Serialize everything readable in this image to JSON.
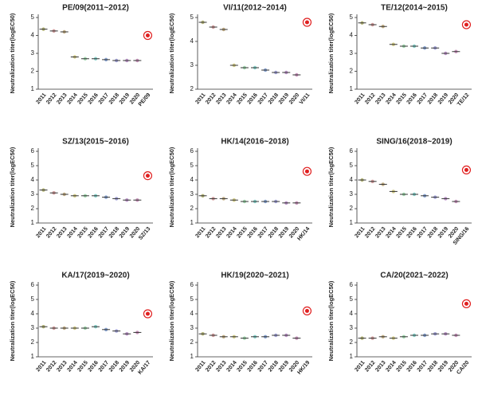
{
  "chart_data": [
    {
      "type": "dot",
      "title": "PE/09(2011~2012)",
      "y_label": "Neutralization titer(logEC50)",
      "categories": [
        "2011",
        "2012",
        "2013",
        "2014",
        "2015",
        "2016",
        "2017",
        "2018",
        "2019",
        "2020",
        "PE/09"
      ],
      "values": [
        4.35,
        4.25,
        4.2,
        2.8,
        2.7,
        2.7,
        2.65,
        2.6,
        2.6,
        2.6,
        4.0
      ],
      "colors": [
        "#a8a860",
        "#c98a8a",
        "#b8a070",
        "#c8c070",
        "#8fd0a0",
        "#70c8c0",
        "#7090c8",
        "#9090d0",
        "#b080c0",
        "#c080b0",
        "#e02020"
      ],
      "ylim": [
        1,
        5
      ],
      "yticks": [
        1,
        2,
        3,
        4,
        5
      ]
    },
    {
      "type": "dot",
      "title": "VI/11(2012~2014)",
      "y_label": "Neutralization titer(logEC50)",
      "categories": [
        "2011",
        "2012",
        "2013",
        "2014",
        "2015",
        "2016",
        "2017",
        "2018",
        "2019",
        "2020",
        "VI/11"
      ],
      "values": [
        4.8,
        4.6,
        4.5,
        3.0,
        2.9,
        2.9,
        2.8,
        2.7,
        2.7,
        2.6,
        4.8
      ],
      "colors": [
        "#a8a860",
        "#c98a8a",
        "#b8a070",
        "#c8c070",
        "#8fd0a0",
        "#70c8c0",
        "#7090c8",
        "#9090d0",
        "#b080c0",
        "#c080b0",
        "#e02020"
      ],
      "ylim": [
        2,
        5
      ],
      "yticks": [
        2,
        3,
        4,
        5
      ]
    },
    {
      "type": "dot",
      "title": "TE/12(2014~2015)",
      "y_label": "Neutralization titer(logEC50)",
      "categories": [
        "2011",
        "2012",
        "2013",
        "2014",
        "2015",
        "2016",
        "2017",
        "2018",
        "2019",
        "2020",
        "TE/12"
      ],
      "values": [
        4.7,
        4.6,
        4.5,
        3.5,
        3.4,
        3.4,
        3.3,
        3.3,
        3.0,
        3.1,
        4.6
      ],
      "colors": [
        "#a8a860",
        "#c98a8a",
        "#b8a070",
        "#c8c070",
        "#8fd0a0",
        "#70c8c0",
        "#7090c8",
        "#9090d0",
        "#b080c0",
        "#c080b0",
        "#e02020"
      ],
      "ylim": [
        1,
        5
      ],
      "yticks": [
        1,
        2,
        3,
        4,
        5
      ]
    },
    {
      "type": "dot",
      "title": "SZ/13(2015~2016)",
      "y_label": "Neutralization titer(logEC50)",
      "categories": [
        "2011",
        "2012",
        "2013",
        "2014",
        "2015",
        "2016",
        "2017",
        "2018",
        "2019",
        "2020",
        "SZ/13"
      ],
      "values": [
        3.3,
        3.1,
        3.0,
        2.9,
        2.9,
        2.9,
        2.8,
        2.7,
        2.6,
        2.6,
        4.3
      ],
      "colors": [
        "#a8a860",
        "#c98a8a",
        "#b8a070",
        "#c8c070",
        "#8fd0a0",
        "#70c8c0",
        "#7090c8",
        "#9090d0",
        "#b080c0",
        "#c080b0",
        "#e02020"
      ],
      "ylim": [
        1,
        6
      ],
      "yticks": [
        1,
        2,
        3,
        4,
        5,
        6
      ]
    },
    {
      "type": "dot",
      "title": "HK/14(2016~2018)",
      "y_label": "Neutralization titer(logEC50)",
      "categories": [
        "2011",
        "2012",
        "2013",
        "2014",
        "2015",
        "2016",
        "2017",
        "2018",
        "2019",
        "2020",
        "HK/14"
      ],
      "values": [
        2.9,
        2.7,
        2.7,
        2.6,
        2.5,
        2.5,
        2.5,
        2.5,
        2.4,
        2.4,
        4.6
      ],
      "colors": [
        "#a8a860",
        "#c98a8a",
        "#b8a070",
        "#c8c070",
        "#8fd0a0",
        "#70c8c0",
        "#7090c8",
        "#9090d0",
        "#b080c0",
        "#c080b0",
        "#e02020"
      ],
      "ylim": [
        1,
        6
      ],
      "yticks": [
        1,
        2,
        3,
        4,
        5,
        6
      ]
    },
    {
      "type": "dot",
      "title": "SING/16(2018~2019)",
      "y_label": "Neutralization titer(logEC50)",
      "categories": [
        "2011",
        "2012",
        "2013",
        "2014",
        "2015",
        "2016",
        "2017",
        "2018",
        "2019",
        "2020",
        "SING/16"
      ],
      "values": [
        4.0,
        3.9,
        3.7,
        3.2,
        3.0,
        3.0,
        2.9,
        2.8,
        2.7,
        2.5,
        4.7
      ],
      "colors": [
        "#a8a860",
        "#c98a8a",
        "#b8a070",
        "#c8c070",
        "#8fd0a0",
        "#70c8c0",
        "#7090c8",
        "#9090d0",
        "#b080c0",
        "#c080b0",
        "#e02020"
      ],
      "ylim": [
        1,
        6
      ],
      "yticks": [
        1,
        2,
        3,
        4,
        5,
        6
      ]
    },
    {
      "type": "dot",
      "title": "KA/17(2019~2020)",
      "y_label": "Neutralization titer(logEC50)",
      "categories": [
        "2011",
        "2012",
        "2013",
        "2014",
        "2015",
        "2016",
        "2017",
        "2018",
        "2019",
        "2020",
        "KA/17"
      ],
      "values": [
        3.1,
        3.0,
        3.0,
        3.0,
        3.0,
        3.1,
        2.9,
        2.8,
        2.6,
        2.7,
        4.0
      ],
      "colors": [
        "#a8a860",
        "#c98a8a",
        "#b8a070",
        "#c8c070",
        "#8fd0a0",
        "#70c8c0",
        "#7090c8",
        "#9090d0",
        "#b080c0",
        "#c080b0",
        "#e02020"
      ],
      "ylim": [
        1,
        6
      ],
      "yticks": [
        1,
        2,
        3,
        4,
        5,
        6
      ]
    },
    {
      "type": "dot",
      "title": "HK/19(2020~2021)",
      "y_label": "Neutralization titer(logEC50)",
      "categories": [
        "2011",
        "2012",
        "2013",
        "2014",
        "2015",
        "2016",
        "2017",
        "2018",
        "2019",
        "2020",
        "HK/19"
      ],
      "values": [
        2.6,
        2.5,
        2.4,
        2.4,
        2.3,
        2.4,
        2.4,
        2.5,
        2.5,
        2.3,
        4.2
      ],
      "colors": [
        "#a8a860",
        "#c98a8a",
        "#b8a070",
        "#c8c070",
        "#8fd0a0",
        "#70c8c0",
        "#7090c8",
        "#9090d0",
        "#b080c0",
        "#c080b0",
        "#e02020"
      ],
      "ylim": [
        1,
        6
      ],
      "yticks": [
        1,
        2,
        3,
        4,
        5,
        6
      ]
    },
    {
      "type": "dot",
      "title": "CA/20(2021~2022)",
      "y_label": "Neutralization titer(logEC50)",
      "categories": [
        "2011",
        "2012",
        "2013",
        "2014",
        "2015",
        "2016",
        "2017",
        "2018",
        "2019",
        "2020",
        "CA/20"
      ],
      "values": [
        2.3,
        2.3,
        2.4,
        2.3,
        2.4,
        2.5,
        2.5,
        2.6,
        2.6,
        2.5,
        4.7
      ],
      "colors": [
        "#a8a860",
        "#c98a8a",
        "#b8a070",
        "#c8c070",
        "#8fd0a0",
        "#70c8c0",
        "#7090c8",
        "#9090d0",
        "#b080c0",
        "#c080b0",
        "#e02020"
      ],
      "ylim": [
        1,
        6
      ],
      "yticks": [
        1,
        2,
        3,
        4,
        5,
        6
      ]
    }
  ]
}
